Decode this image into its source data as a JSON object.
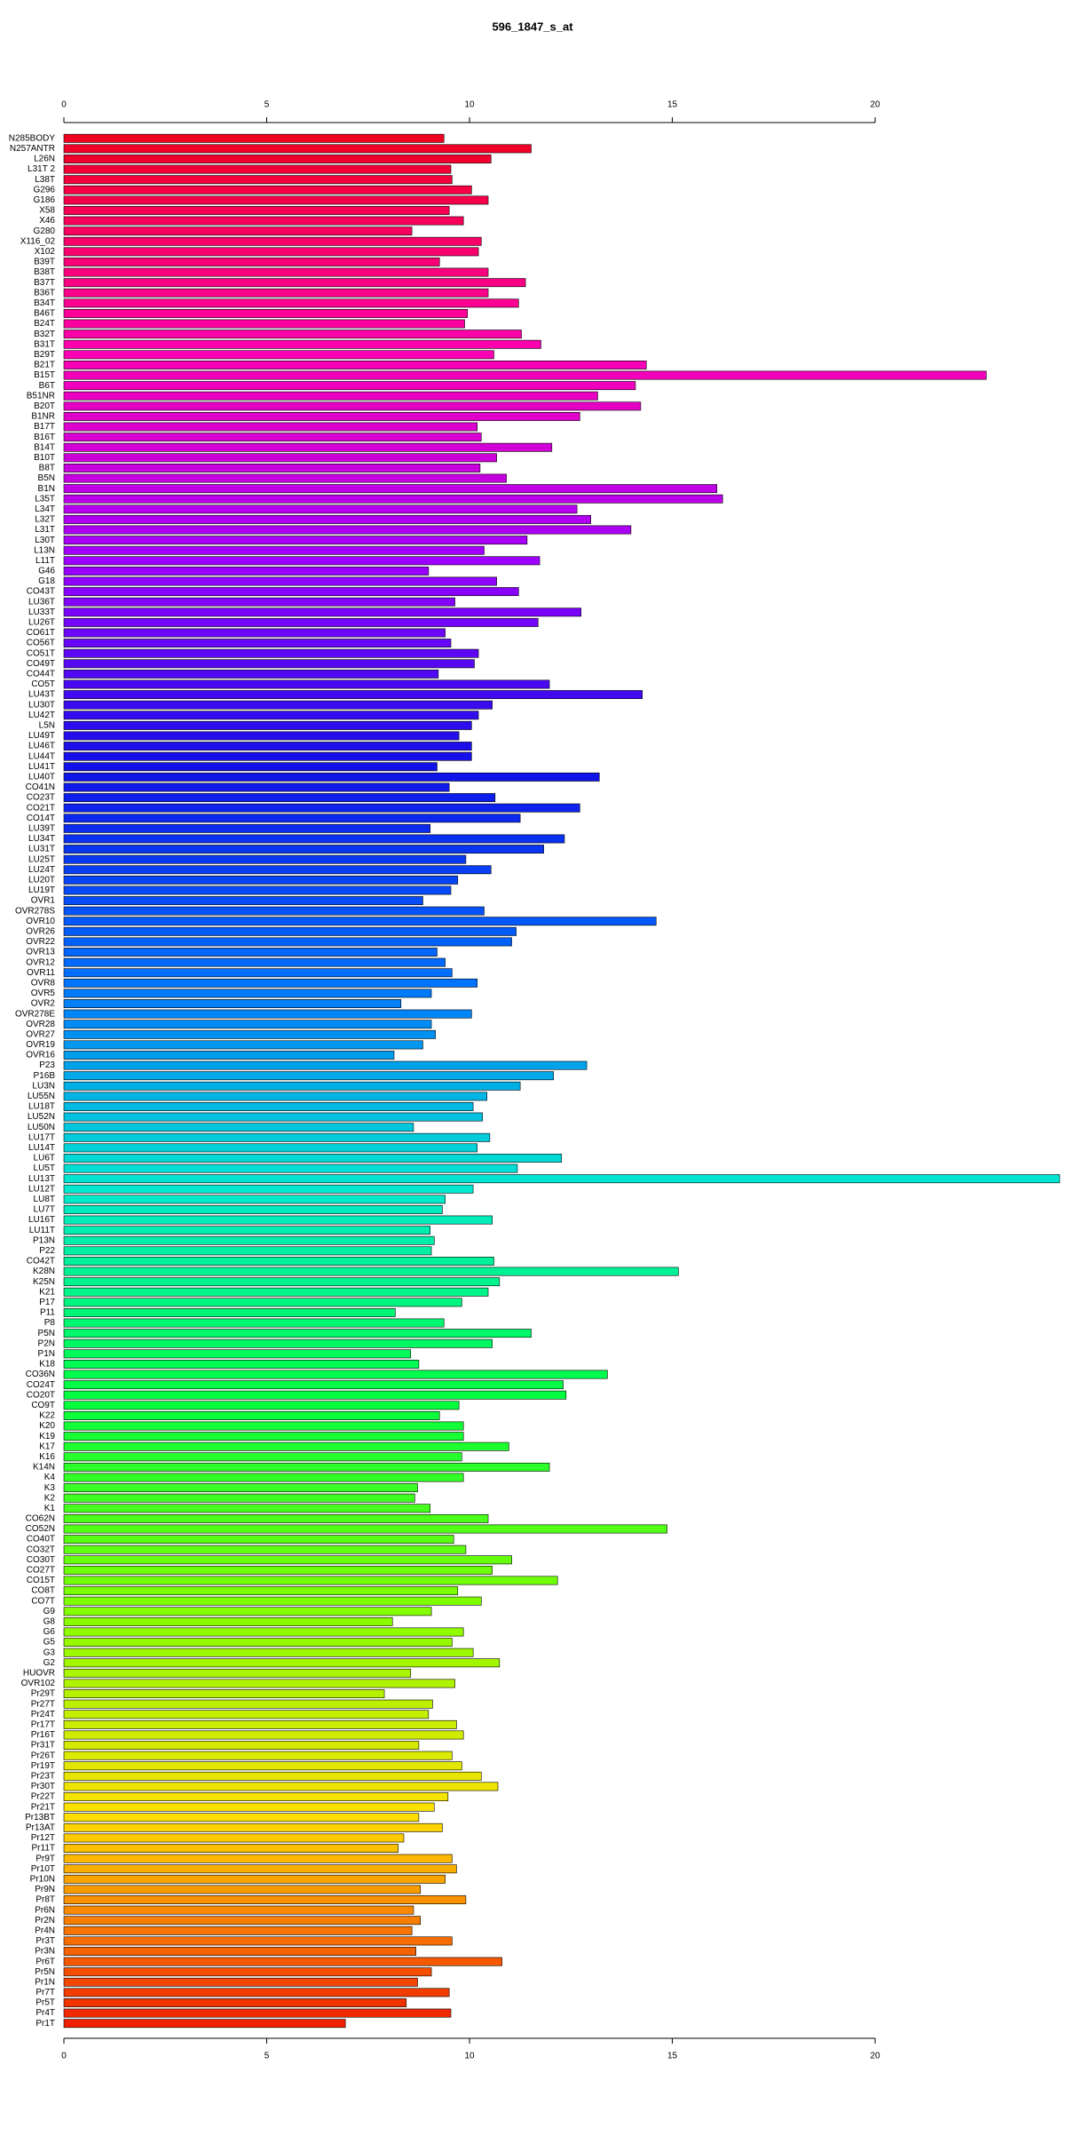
{
  "chart_data": {
    "type": "barh",
    "title": "596_1847_s_at",
    "categories": [
      "N285BODY",
      "N257ANTR",
      "L26N",
      "L31T 2",
      "L38T",
      "G296",
      "G186",
      "X58",
      "X46",
      "G280",
      "X116_02",
      "X102",
      "B39T",
      "B38T",
      "B37T",
      "B36T",
      "B34T",
      "B46T",
      "B24T",
      "B32T",
      "B31T",
      "B29T",
      "B21T",
      "B15T",
      "B6T",
      "B51NR",
      "B20T",
      "B1NR",
      "B17T",
      "B16T",
      "B14T",
      "B10T",
      "B8T",
      "B5N",
      "B1N",
      "L35T",
      "L34T",
      "L32T",
      "L31T",
      "L30T",
      "L13N",
      "L11T",
      "G46",
      "G18",
      "CO43T",
      "LU36T",
      "LU33T",
      "LU26T",
      "CO61T",
      "CO56T",
      "CO51T",
      "CO49T",
      "CO44T",
      "CO5T",
      "LU43T",
      "LU30T",
      "LU42T",
      "L5N",
      "LU49T",
      "LU46T",
      "LU44T",
      "LU41T",
      "LU40T",
      "CO41N",
      "CO23T",
      "CO21T",
      "CO14T",
      "LU39T",
      "LU34T",
      "LU31T",
      "LU25T",
      "LU24T",
      "LU20T",
      "LU19T",
      "OVR1",
      "OVR278S",
      "OVR10",
      "OVR26",
      "OVR22",
      "OVR13",
      "OVR12",
      "OVR11",
      "OVR8",
      "OVR5",
      "OVR2",
      "OVR278E",
      "OVR28",
      "OVR27",
      "OVR19",
      "OVR16",
      "P23",
      "P16B",
      "LU3N",
      "LU55N",
      "LU18T",
      "LU52N",
      "LU50N",
      "LU17T",
      "LU14T",
      "LU6T",
      "LU5T",
      "LU13T",
      "LU12T",
      "LU8T",
      "LU7T",
      "LU16T",
      "LU11T",
      "P13N",
      "P22",
      "CO42T",
      "K28N",
      "K25N",
      "K21",
      "P17",
      "P11",
      "P8",
      "P5N",
      "P2N",
      "P1N",
      "K18",
      "CO36N",
      "CO24T",
      "CO20T",
      "CO9T",
      "K22",
      "K20",
      "K19",
      "K17",
      "K16",
      "K14N",
      "K4",
      "K3",
      "K2",
      "K1",
      "CO62N",
      "CO52N",
      "CO40T",
      "CO32T",
      "CO30T",
      "CO27T",
      "CO15T",
      "CO8T",
      "CO7T",
      "G9",
      "G8",
      "G6",
      "G5",
      "G3",
      "G2",
      "HUOVR",
      "OVR102",
      "Pr29T",
      "Pr27T",
      "Pr24T",
      "Pr17T",
      "Pr16T",
      "Pr31T",
      "Pr26T",
      "Pr19T",
      "Pr23T",
      "Pr30T",
      "Pr22T",
      "Pr21T",
      "Pr13BT",
      "Pr13AT",
      "Pr12T",
      "Pr11T",
      "Pr9T",
      "Pr10T",
      "Pr10N",
      "Pr9N",
      "Pr8T",
      "Pr6N",
      "Pr2N",
      "Pr4N",
      "Pr3T",
      "Pr3N",
      "Pr6T",
      "Pr5N",
      "Pr1N",
      "Pr7T",
      "Pr5T",
      "Pr4T",
      "Pr1T"
    ],
    "values": [
      9.37,
      11.52,
      10.53,
      9.54,
      9.57,
      10.05,
      10.46,
      9.5,
      9.85,
      8.58,
      10.29,
      10.22,
      9.26,
      10.46,
      11.38,
      10.46,
      11.21,
      9.95,
      9.88,
      11.28,
      11.76,
      10.6,
      14.36,
      22.74,
      14.09,
      13.16,
      14.22,
      12.72,
      10.19,
      10.29,
      12.03,
      10.67,
      10.26,
      10.91,
      16.1,
      16.24,
      12.65,
      12.99,
      13.98,
      11.42,
      10.36,
      11.73,
      8.99,
      10.67,
      11.21,
      9.64,
      12.75,
      11.69,
      9.4,
      9.54,
      10.22,
      10.12,
      9.23,
      11.97,
      14.26,
      10.56,
      10.22,
      10.05,
      9.74,
      10.05,
      10.05,
      9.2,
      13.2,
      9.5,
      10.63,
      12.72,
      11.25,
      9.03,
      12.34,
      11.83,
      9.91,
      10.53,
      9.71,
      9.54,
      8.85,
      10.36,
      14.6,
      11.15,
      11.04,
      9.2,
      9.4,
      9.57,
      10.19,
      9.06,
      8.31,
      10.05,
      9.06,
      9.16,
      8.85,
      8.14,
      12.89,
      12.07,
      11.25,
      10.43,
      10.09,
      10.32,
      8.62,
      10.5,
      10.19,
      12.27,
      11.18,
      24.55,
      10.09,
      9.4,
      9.33,
      10.56,
      9.03,
      9.13,
      9.06,
      10.6,
      15.15,
      10.74,
      10.46,
      9.81,
      8.17,
      9.37,
      11.52,
      10.56,
      8.55,
      8.75,
      13.4,
      12.31,
      12.38,
      9.74,
      9.26,
      9.85,
      9.85,
      10.97,
      9.81,
      11.97,
      9.85,
      8.72,
      8.65,
      9.03,
      10.46,
      14.87,
      9.61,
      9.91,
      11.04,
      10.56,
      12.17,
      9.71,
      10.29,
      9.06,
      8.1,
      9.85,
      9.57,
      10.09,
      10.74,
      8.55,
      9.64,
      7.9,
      9.09,
      8.99,
      9.68,
      9.85,
      8.75,
      9.57,
      9.81,
      10.29,
      10.7,
      9.47,
      9.13,
      8.75,
      9.33,
      8.38,
      8.24,
      9.57,
      9.68,
      9.4,
      8.79,
      9.91,
      8.62,
      8.79,
      8.58,
      9.57,
      8.68,
      10.8,
      9.06,
      8.72,
      9.5,
      8.44,
      9.54,
      6.94
    ],
    "palette": [
      "#f00020",
      "#ff00b0",
      "#a000ff",
      "#1010e8",
      "#0070ff",
      "#00e8d0",
      "#00ff40",
      "#80ff00",
      "#ffe000",
      "#f02000"
    ],
    "xlim": [
      0,
      24.55
    ],
    "xticks": [
      0,
      5,
      10,
      15,
      20
    ]
  }
}
